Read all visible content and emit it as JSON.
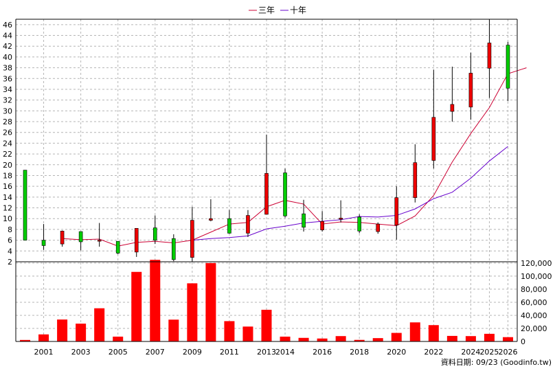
{
  "legend": [
    {
      "label": "三年",
      "color": "#cc0033"
    },
    {
      "label": "十年",
      "color": "#6600cc"
    }
  ],
  "footer": "資料日期: 09/23 (Goodinfo.tw)",
  "chart_data": [
    {
      "type": "candlestick",
      "years": [
        2000,
        2001,
        2002,
        2003,
        2004,
        2005,
        2006,
        2007,
        2008,
        2009,
        2010,
        2011,
        2012,
        2013,
        2014,
        2015,
        2016,
        2017,
        2018,
        2019,
        2020,
        2021,
        2022,
        2023,
        2024,
        2025,
        2026
      ],
      "ylim": [
        2,
        47
      ],
      "yticks": [
        2,
        4,
        6,
        8,
        10,
        12,
        14,
        16,
        18,
        20,
        22,
        24,
        26,
        28,
        30,
        32,
        34,
        36,
        38,
        40,
        42,
        44,
        46
      ],
      "candles": [
        {
          "year": 2000,
          "open": 6,
          "close": 19,
          "high": 19,
          "low": 6,
          "up": true
        },
        {
          "year": 2001,
          "open": 6,
          "close": 5,
          "high": 9,
          "low": 4.2,
          "up": true
        },
        {
          "year": 2002,
          "open": 5.3,
          "close": 7.7,
          "high": 7.8,
          "low": 4.8,
          "up": false
        },
        {
          "year": 2003,
          "open": 5.7,
          "close": 7.6,
          "high": 7.6,
          "low": 4.1,
          "up": true
        },
        {
          "year": 2004,
          "open": 6,
          "close": 6,
          "high": 9.2,
          "low": 4.8,
          "up": false
        },
        {
          "year": 2005,
          "open": 3.6,
          "close": 5.8,
          "high": 5.8,
          "low": 3.4,
          "up": true
        },
        {
          "year": 2006,
          "open": 3.8,
          "close": 8.2,
          "high": 8.2,
          "low": 2.9,
          "up": false
        },
        {
          "year": 2007,
          "open": 6,
          "close": 8.3,
          "high": 10.6,
          "low": 5.3,
          "up": true
        },
        {
          "year": 2008,
          "open": 2.4,
          "close": 6.3,
          "high": 7.1,
          "low": 2.1,
          "up": true
        },
        {
          "year": 2009,
          "open": 2.8,
          "close": 9.7,
          "high": 12.2,
          "low": 2,
          "up": false
        },
        {
          "year": 2010,
          "open": 9.7,
          "close": 10,
          "high": 13.6,
          "low": 9.5,
          "up": false
        },
        {
          "year": 2011,
          "open": 7.3,
          "close": 10,
          "high": 11.6,
          "low": 7.2,
          "up": true
        },
        {
          "year": 2012,
          "open": 7.3,
          "close": 10.6,
          "high": 11.6,
          "low": 6.6,
          "up": false
        },
        {
          "year": 2013,
          "open": 10.8,
          "close": 18.4,
          "high": 25.6,
          "low": 10.8,
          "up": false
        },
        {
          "year": 2014,
          "open": 10.5,
          "close": 18.5,
          "high": 19.3,
          "low": 10.2,
          "up": true
        },
        {
          "year": 2015,
          "open": 8.4,
          "close": 10.9,
          "high": 13.5,
          "low": 7.6,
          "up": true
        },
        {
          "year": 2016,
          "open": 7.9,
          "close": 9.5,
          "high": 11.4,
          "low": 7.6,
          "up": false
        },
        {
          "year": 2017,
          "open": 9.9,
          "close": 10.1,
          "high": 13.4,
          "low": 9.3,
          "up": false
        },
        {
          "year": 2018,
          "open": 7.7,
          "close": 10.3,
          "high": 10.8,
          "low": 7.3,
          "up": true
        },
        {
          "year": 2019,
          "open": 7.6,
          "close": 9,
          "high": 9.3,
          "low": 7.2,
          "up": false
        },
        {
          "year": 2020,
          "open": 8.8,
          "close": 13.9,
          "high": 16,
          "low": 6.1,
          "up": false
        },
        {
          "year": 2021,
          "open": 13.9,
          "close": 20.4,
          "high": 23.8,
          "low": 13,
          "up": false
        },
        {
          "year": 2022,
          "open": 20.8,
          "close": 28.8,
          "high": 37.6,
          "low": 19.3,
          "up": false
        },
        {
          "year": 2023,
          "open": 29.9,
          "close": 31.2,
          "high": 38.2,
          "low": 28,
          "up": false
        },
        {
          "year": 2024,
          "open": 30.7,
          "close": 37,
          "high": 40.8,
          "low": 28.4,
          "up": false
        },
        {
          "year": 2025,
          "open": 37.9,
          "close": 42.6,
          "high": 47,
          "low": 32.4,
          "up": false
        },
        {
          "year": 2026,
          "open": 34.2,
          "close": 42.2,
          "high": 42.8,
          "low": 31.8,
          "up": true
        }
      ],
      "series": [
        {
          "name": "三年",
          "color": "#cc0033",
          "start_year": 2002,
          "values": [
            6.3,
            6.1,
            6.2,
            4.9,
            5.6,
            5.8,
            5.5,
            6,
            7.5,
            9,
            9.3,
            12.2,
            13.4,
            12.7,
            9,
            9.4,
            9.3,
            9,
            8.7,
            10.5,
            14.3,
            20.5,
            25.8,
            30.6,
            36.9,
            38
          ]
        },
        {
          "name": "十年",
          "color": "#6600cc",
          "start_year": 2009,
          "values": [
            6,
            6.3,
            6.5,
            6.8,
            8.1,
            8.6,
            9.2,
            9.5,
            9.8,
            10.4,
            10.3,
            10.6,
            11.8,
            13.7,
            14.9,
            17.5,
            20.7,
            23.4
          ]
        }
      ]
    },
    {
      "type": "bar",
      "title": "",
      "years": [
        2000,
        2001,
        2002,
        2003,
        2004,
        2005,
        2006,
        2007,
        2008,
        2009,
        2010,
        2011,
        2012,
        2013,
        2014,
        2015,
        2016,
        2017,
        2018,
        2019,
        2020,
        2021,
        2022,
        2023,
        2024,
        2025,
        2026
      ],
      "values": [
        2300,
        10800,
        33600,
        27300,
        50800,
        7400,
        106500,
        125000,
        33400,
        89000,
        120000,
        31100,
        22800,
        48500,
        7400,
        5500,
        4500,
        8200,
        2400,
        5100,
        13100,
        29200,
        25000,
        8500,
        8200,
        11700,
        6600
      ],
      "ylim": [
        0,
        122000
      ],
      "yticks": [
        0,
        20000,
        40000,
        60000,
        80000,
        100000,
        120000
      ],
      "ytick_labels": [
        "0",
        "20,000",
        "40,000",
        "60,000",
        "80,000",
        "100,000",
        "120,000"
      ],
      "color": "#ff0000"
    }
  ],
  "xaxis_labels": [
    "2001",
    "2003",
    "2005",
    "2007",
    "2009",
    "2011",
    "2013",
    "2014",
    "2016",
    "2018",
    "2020",
    "2022",
    "2024",
    "2025",
    "2026"
  ]
}
